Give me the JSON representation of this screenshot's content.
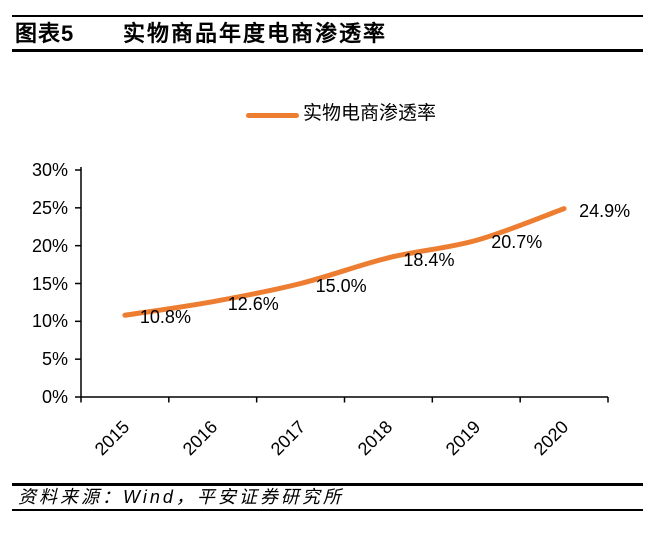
{
  "figure": {
    "label": "图表5",
    "title": "实物商品年度电商渗透率"
  },
  "source": "资料来源：Wind，平安证券研究所",
  "colors": {
    "line": "#ED7D31",
    "axis": "#000000",
    "text": "#000000"
  },
  "chart_data": {
    "type": "line",
    "title": "实物商品年度电商渗透率",
    "categories": [
      "2015",
      "2016",
      "2017",
      "2018",
      "2019",
      "2020"
    ],
    "series": [
      {
        "name": "实物电商渗透率",
        "values": [
          10.8,
          12.6,
          15.0,
          18.4,
          20.7,
          24.9
        ]
      }
    ],
    "data_labels": [
      "10.8%",
      "12.6%",
      "15.0%",
      "18.4%",
      "20.7%",
      "24.9%"
    ],
    "xlabel": "",
    "ylabel": "",
    "ylim": [
      0,
      30
    ],
    "yticks": {
      "values": [
        0,
        5,
        10,
        15,
        20,
        25,
        30
      ],
      "labels": [
        "0%",
        "5%",
        "10%",
        "15%",
        "20%",
        "25%",
        "30%"
      ]
    },
    "grid": false,
    "legend_position": "top",
    "smoothed": true
  }
}
